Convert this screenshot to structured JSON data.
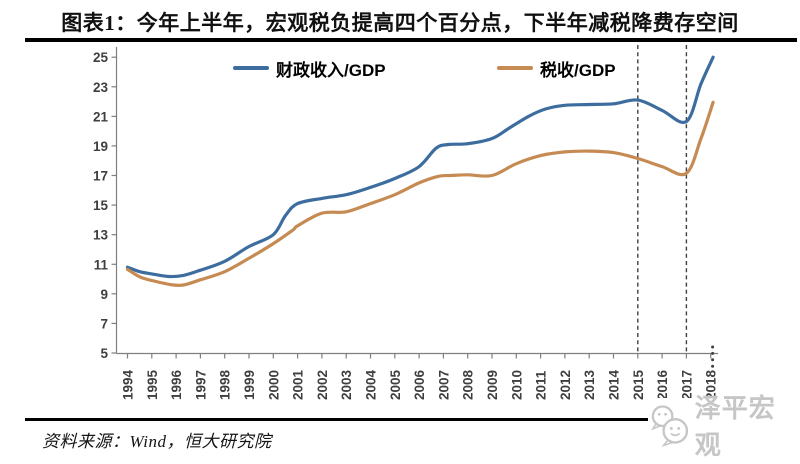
{
  "page": {
    "title": "图表1：今年上半年，宏观税负提高四个百分点，下半年减税降费存空间",
    "source": "资料来源：Wind，恒大研究院",
    "watermark": "泽平宏观"
  },
  "chart_data": {
    "type": "line",
    "title": "图表1：今年上半年，宏观税负提高四个百分点，下半年减税降费存空间",
    "xlabel": "",
    "ylabel": "",
    "ylim": [
      5,
      25
    ],
    "yticks": [
      5,
      7,
      9,
      11,
      13,
      15,
      17,
      19,
      21,
      23,
      25
    ],
    "xtick_labels": [
      "1994",
      "1995",
      "1996",
      "1997",
      "1998",
      "1999",
      "2000",
      "2001",
      "2002",
      "2003",
      "2004",
      "2005",
      "2006",
      "2007",
      "2008",
      "2009",
      "2010",
      "2011",
      "2012",
      "2013",
      "2014",
      "2015",
      "2016",
      "2017",
      "2018"
    ],
    "grid": false,
    "legend_position": "top",
    "axis_color": "#7f7f7f",
    "tick_label_color": "#3f3f3f",
    "annotations": {
      "dashed_vlines_x": [
        2015,
        2017
      ],
      "dashed_color": "#3f3f3f",
      "truncation_marker_x": 2018.08
    },
    "series": [
      {
        "name": "财政收入/GDP",
        "color": "#3D6D9E",
        "points": [
          [
            1994,
            10.8
          ],
          [
            1994.5,
            10.5
          ],
          [
            1995,
            10.35
          ],
          [
            1995.7,
            10.17
          ],
          [
            1996.3,
            10.25
          ],
          [
            1997,
            10.6
          ],
          [
            1998,
            11.2
          ],
          [
            1999,
            12.2
          ],
          [
            2000,
            13.0
          ],
          [
            2000.5,
            14.3
          ],
          [
            2001,
            15.1
          ],
          [
            2002,
            15.45
          ],
          [
            2003,
            15.7
          ],
          [
            2004,
            16.2
          ],
          [
            2005,
            16.8
          ],
          [
            2006,
            17.6
          ],
          [
            2006.7,
            18.85
          ],
          [
            2007.2,
            19.1
          ],
          [
            2008,
            19.15
          ],
          [
            2009,
            19.5
          ],
          [
            2009.7,
            20.2
          ],
          [
            2010.5,
            21.0
          ],
          [
            2011.2,
            21.5
          ],
          [
            2012,
            21.75
          ],
          [
            2013,
            21.8
          ],
          [
            2014,
            21.85
          ],
          [
            2015,
            22.1
          ],
          [
            2016,
            21.4
          ],
          [
            2017,
            20.65
          ],
          [
            2017.6,
            23.2
          ],
          [
            2018.1,
            25.0
          ]
        ]
      },
      {
        "name": "税收/GDP",
        "color": "#C68A53",
        "points": [
          [
            1994,
            10.65
          ],
          [
            1994.5,
            10.15
          ],
          [
            1995,
            9.9
          ],
          [
            1995.8,
            9.62
          ],
          [
            1996.3,
            9.6
          ],
          [
            1997,
            9.95
          ],
          [
            1998,
            10.5
          ],
          [
            1999,
            11.4
          ],
          [
            2000,
            12.4
          ],
          [
            2000.8,
            13.3
          ],
          [
            2001,
            13.6
          ],
          [
            2002,
            14.45
          ],
          [
            2003,
            14.55
          ],
          [
            2004,
            15.1
          ],
          [
            2005,
            15.7
          ],
          [
            2006,
            16.5
          ],
          [
            2006.8,
            16.95
          ],
          [
            2007.3,
            17.0
          ],
          [
            2008,
            17.05
          ],
          [
            2009,
            17.0
          ],
          [
            2010,
            17.8
          ],
          [
            2011,
            18.35
          ],
          [
            2012,
            18.6
          ],
          [
            2013,
            18.65
          ],
          [
            2014,
            18.55
          ],
          [
            2015,
            18.15
          ],
          [
            2016,
            17.6
          ],
          [
            2017,
            17.15
          ],
          [
            2017.6,
            19.5
          ],
          [
            2018.1,
            21.95
          ]
        ]
      }
    ]
  }
}
